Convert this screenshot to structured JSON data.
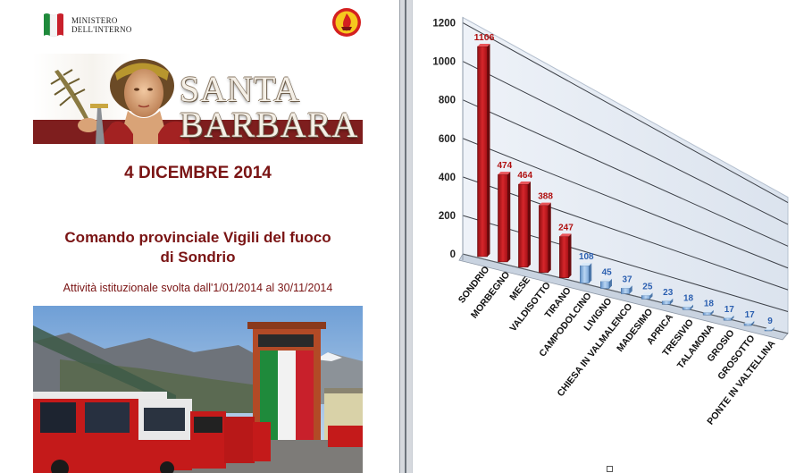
{
  "document": {
    "ministry_line1": "MINISTERO",
    "ministry_line2": "DELL'INTERNO",
    "banner_title_line1": "SANTA",
    "banner_title_line2": "BARBARA",
    "date": "4 DICEMBRE 2014",
    "comando_line1": "Comando provinciale Vigili del fuoco",
    "comando_line2": "di Sondrio",
    "attivita": "Attività istituzionale svolta dall'1/01/2014 al 30/11/2014",
    "colors": {
      "title_red": "#7a1414",
      "banner_band": "#7e1e1e"
    }
  },
  "chart_data": {
    "type": "bar",
    "categories": [
      "SONDRIO",
      "MORBEGNO",
      "MESE",
      "VALDISOTTO",
      "TIRANO",
      "CAMPODOLCINO",
      "LIVIGNO",
      "CHIESA IN VALMALENCO",
      "MADESIMO",
      "APRICA",
      "TRESIVIO",
      "TALAMONA",
      "GROSIO",
      "GROSOTTO",
      "PONTE IN VALTELLINA"
    ],
    "values": [
      1106,
      474,
      464,
      388,
      247,
      108,
      45,
      37,
      25,
      23,
      18,
      18,
      17,
      17,
      9
    ],
    "title": "",
    "xlabel": "",
    "ylabel": "",
    "ylim": [
      0,
      1200
    ],
    "yticks": [
      0,
      200,
      400,
      600,
      800,
      1000,
      1200
    ],
    "grid": true,
    "legend": "none",
    "colors": {
      "high": "#c4161c",
      "low": "#9cc3ea",
      "high_label": "#b01010",
      "low_label": "#2b5fb0"
    }
  }
}
